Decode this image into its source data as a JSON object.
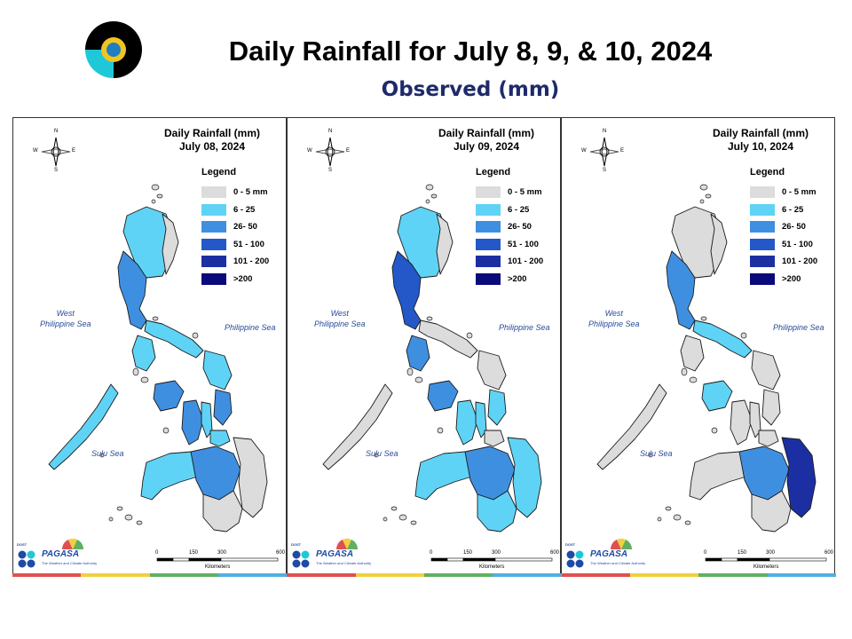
{
  "header": {
    "title": "Daily Rainfall for July 8, 9, & 10, 2024",
    "subtitle": "Observed (mm)"
  },
  "legend": {
    "title": "Legend",
    "items": [
      {
        "label": "0 - 5 mm",
        "color": "#dcdcdc"
      },
      {
        "label": "6 - 25",
        "color": "#5fd3f5"
      },
      {
        "label": "26- 50",
        "color": "#3f8fe0"
      },
      {
        "label": "51 - 100",
        "color": "#2458c8"
      },
      {
        "label": "101 - 200",
        "color": "#1c2fa2"
      },
      {
        "label": ">200",
        "color": "#0a0a7a"
      }
    ]
  },
  "seas": {
    "west": "West\nPhilippine Sea",
    "east": "Philippine Sea",
    "sulu": "Sulu Sea"
  },
  "compass": {
    "n": "N",
    "s": "S",
    "e": "E",
    "w": "W"
  },
  "branding": {
    "agency": "PAGASA",
    "dost": "DOST",
    "tagline": "The Weather and Climate Authority"
  },
  "scale": {
    "ticks": [
      "0",
      "150",
      "300",
      "600"
    ],
    "unit": "Kilometers"
  },
  "panels": [
    {
      "title_line1": "Daily Rainfall (mm)",
      "title_line2": "July 08, 2024",
      "regions": {
        "luzon_north": "#5fd3f5",
        "luzon_central": "#3f8fe0",
        "luzon_east": "#dcdcdc",
        "bicol": "#5fd3f5",
        "mindoro": "#5fd3f5",
        "palawan": "#5fd3f5",
        "panay": "#3f8fe0",
        "negros": "#3f8fe0",
        "samar": "#5fd3f5",
        "leyte": "#3f8fe0",
        "cebu": "#5fd3f5",
        "bohol": "#5fd3f5",
        "mindanao_west": "#5fd3f5",
        "mindanao_central": "#3f8fe0",
        "mindanao_east": "#dcdcdc",
        "mindanao_south": "#dcdcdc"
      }
    },
    {
      "title_line1": "Daily Rainfall (mm)",
      "title_line2": "July 09, 2024",
      "regions": {
        "luzon_north": "#5fd3f5",
        "luzon_central": "#2458c8",
        "luzon_east": "#dcdcdc",
        "bicol": "#dcdcdc",
        "mindoro": "#3f8fe0",
        "palawan": "#dcdcdc",
        "panay": "#3f8fe0",
        "negros": "#5fd3f5",
        "samar": "#dcdcdc",
        "leyte": "#5fd3f5",
        "cebu": "#5fd3f5",
        "bohol": "#dcdcdc",
        "mindanao_west": "#5fd3f5",
        "mindanao_central": "#3f8fe0",
        "mindanao_east": "#5fd3f5",
        "mindanao_south": "#5fd3f5"
      }
    },
    {
      "title_line1": "Daily Rainfall (mm)",
      "title_line2": "July 10, 2024",
      "regions": {
        "luzon_north": "#dcdcdc",
        "luzon_central": "#3f8fe0",
        "luzon_east": "#dcdcdc",
        "bicol": "#5fd3f5",
        "mindoro": "#dcdcdc",
        "palawan": "#dcdcdc",
        "panay": "#5fd3f5",
        "negros": "#dcdcdc",
        "samar": "#dcdcdc",
        "leyte": "#dcdcdc",
        "cebu": "#dcdcdc",
        "bohol": "#dcdcdc",
        "mindanao_west": "#dcdcdc",
        "mindanao_central": "#3f8fe0",
        "mindanao_east": "#1c2fa2",
        "mindanao_south": "#dcdcdc"
      }
    }
  ],
  "footer_colors": [
    "#e05050",
    "#f0d040",
    "#60b060",
    "#50b0e0"
  ]
}
